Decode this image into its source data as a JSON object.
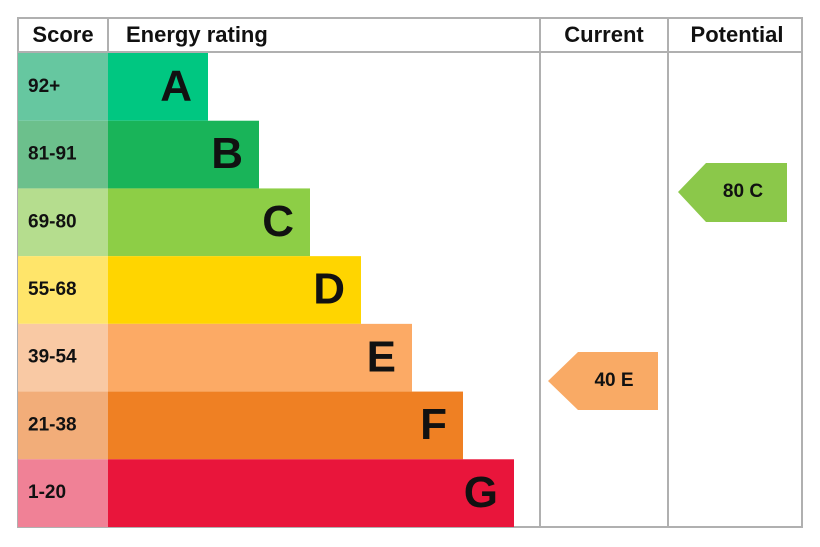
{
  "header": {
    "score": "Score",
    "rating": "Energy rating",
    "current": "Current",
    "potential": "Potential"
  },
  "bands": [
    {
      "score": "92+",
      "letter": "A"
    },
    {
      "score": "81-91",
      "letter": "B"
    },
    {
      "score": "69-80",
      "letter": "C"
    },
    {
      "score": "55-68",
      "letter": "D"
    },
    {
      "score": "39-54",
      "letter": "E"
    },
    {
      "score": "21-38",
      "letter": "F"
    },
    {
      "score": "1-20",
      "letter": "G"
    }
  ],
  "current": "40 E",
  "potential": "80 C"
}
